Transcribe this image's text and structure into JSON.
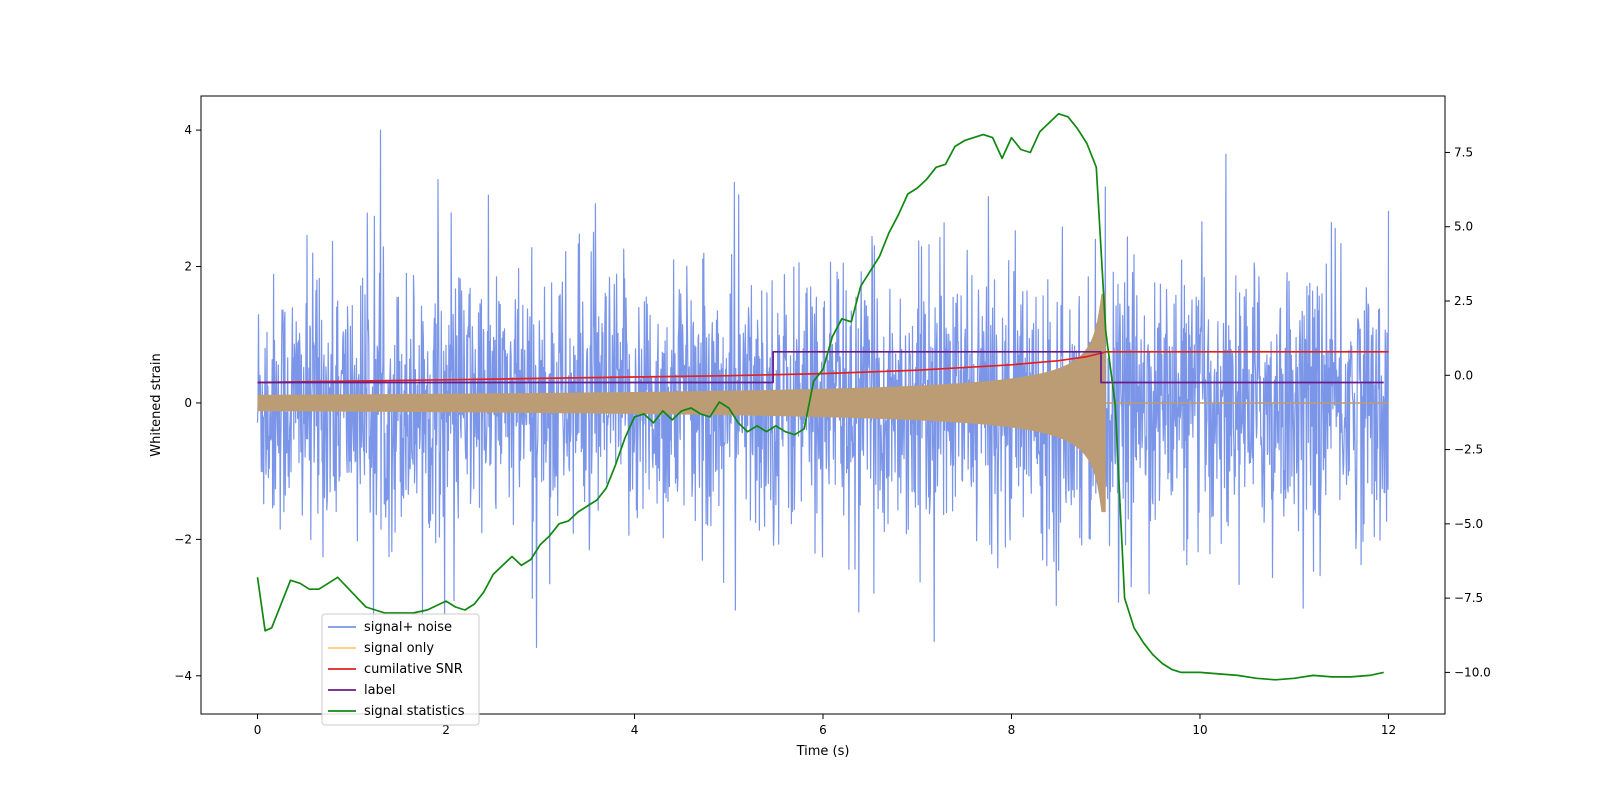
{
  "chart_data": {
    "type": "line",
    "title": "",
    "xlabel": "Time (s)",
    "ylabel": "Whitened strain",
    "y2label": "",
    "xlim": [
      -0.6,
      12.6
    ],
    "ylim": [
      -4.56,
      4.5
    ],
    "y2lim": [
      -11.4,
      9.4
    ],
    "xticks": [
      0,
      2,
      4,
      6,
      8,
      10,
      12
    ],
    "xtick_labels": [
      "0",
      "2",
      "4",
      "6",
      "8",
      "10",
      "12"
    ],
    "yticks": [
      -4,
      -2,
      0,
      2,
      4
    ],
    "ytick_labels": [
      "−4",
      "−2",
      "0",
      "2",
      "4"
    ],
    "y2ticks": [
      -10.0,
      -7.5,
      -5.0,
      -2.5,
      0.0,
      2.5,
      5.0,
      7.5
    ],
    "y2tick_labels": [
      "−10.0",
      "−7.5",
      "−5.0",
      "−2.5",
      "0.0",
      "2.5",
      "5.0",
      "7.5"
    ],
    "legend_position": "lower-left",
    "noise_params": {
      "t_start": 0,
      "t_end": 12,
      "base_amplitude": 1.5,
      "peak_amplitude": 4.0
    },
    "series": [
      {
        "name": "signal+ noise",
        "color": "#7b96e8",
        "axis": "left",
        "style": "noise"
      },
      {
        "name": "signal only",
        "color": "#ffcc77",
        "fill_color": "#bc9c74",
        "axis": "left",
        "style": "chirp",
        "chirp": {
          "t_start": 0,
          "t_merge": 9.0,
          "t_end": 12,
          "start_amplitude": 0.12,
          "peak_amplitude": 1.6
        }
      },
      {
        "name": "cumilative SNR",
        "color": "#e32020",
        "axis": "left",
        "style": "line",
        "x": [
          0,
          1,
          2,
          3,
          4,
          5,
          6,
          7,
          8,
          8.5,
          8.8,
          8.95,
          9.0,
          12
        ],
        "y": [
          0.3,
          0.32,
          0.34,
          0.36,
          0.38,
          0.4,
          0.43,
          0.48,
          0.56,
          0.62,
          0.68,
          0.73,
          0.75,
          0.75
        ]
      },
      {
        "name": "label",
        "color": "#6a1a8a",
        "axis": "left",
        "style": "line",
        "x": [
          0,
          5.47,
          5.47,
          8.95,
          8.95,
          11.95
        ],
        "y": [
          0.3,
          0.3,
          0.75,
          0.75,
          0.3,
          0.3
        ]
      },
      {
        "name": "signal statistics",
        "color": "#118811",
        "axis": "right",
        "style": "line",
        "x": [
          0,
          0.08,
          0.15,
          0.35,
          0.45,
          0.55,
          0.65,
          0.75,
          0.85,
          1.0,
          1.15,
          1.35,
          1.5,
          1.65,
          1.8,
          2.0,
          2.1,
          2.2,
          2.3,
          2.4,
          2.5,
          2.6,
          2.7,
          2.8,
          2.9,
          3.0,
          3.1,
          3.2,
          3.3,
          3.4,
          3.5,
          3.6,
          3.7,
          3.8,
          3.9,
          4.0,
          4.1,
          4.2,
          4.3,
          4.4,
          4.5,
          4.6,
          4.7,
          4.8,
          4.9,
          5.0,
          5.1,
          5.2,
          5.3,
          5.4,
          5.5,
          5.6,
          5.7,
          5.8,
          5.9,
          6.0,
          6.1,
          6.2,
          6.3,
          6.4,
          6.5,
          6.6,
          6.7,
          6.8,
          6.9,
          7.0,
          7.1,
          7.2,
          7.3,
          7.4,
          7.5,
          7.6,
          7.7,
          7.8,
          7.9,
          8.0,
          8.1,
          8.2,
          8.3,
          8.4,
          8.5,
          8.6,
          8.7,
          8.8,
          8.9,
          9.0,
          9.1,
          9.2,
          9.3,
          9.4,
          9.5,
          9.6,
          9.7,
          9.8,
          9.9,
          10.0,
          10.2,
          10.4,
          10.6,
          10.8,
          11.0,
          11.2,
          11.4,
          11.6,
          11.8,
          11.95
        ],
        "y": [
          -6.8,
          -8.6,
          -8.5,
          -6.9,
          -7.0,
          -7.2,
          -7.2,
          -7.0,
          -6.8,
          -7.3,
          -7.8,
          -8.0,
          -8.0,
          -8.0,
          -7.9,
          -7.6,
          -7.8,
          -7.9,
          -7.7,
          -7.3,
          -6.7,
          -6.4,
          -6.1,
          -6.4,
          -6.2,
          -5.7,
          -5.4,
          -5.0,
          -4.9,
          -4.6,
          -4.4,
          -4.2,
          -3.8,
          -3.0,
          -2.1,
          -1.4,
          -1.3,
          -1.6,
          -1.2,
          -1.5,
          -1.2,
          -1.1,
          -1.3,
          -1.4,
          -0.9,
          -1.1,
          -1.6,
          -1.9,
          -1.7,
          -1.9,
          -1.7,
          -1.9,
          -2.0,
          -1.8,
          -0.2,
          0.2,
          1.3,
          1.9,
          1.8,
          3.0,
          3.5,
          4.0,
          4.8,
          5.4,
          6.1,
          6.3,
          6.6,
          7.0,
          7.1,
          7.7,
          7.9,
          8.0,
          8.1,
          8.0,
          7.3,
          8.0,
          7.6,
          7.5,
          8.2,
          8.5,
          8.8,
          8.7,
          8.3,
          7.8,
          7.0,
          1.5,
          -1.0,
          -7.5,
          -8.5,
          -9.0,
          -9.4,
          -9.7,
          -9.9,
          -10.0,
          -10.0,
          -10.0,
          -10.05,
          -10.1,
          -10.2,
          -10.25,
          -10.2,
          -10.1,
          -10.15,
          -10.15,
          -10.1,
          -10.0
        ]
      }
    ]
  }
}
